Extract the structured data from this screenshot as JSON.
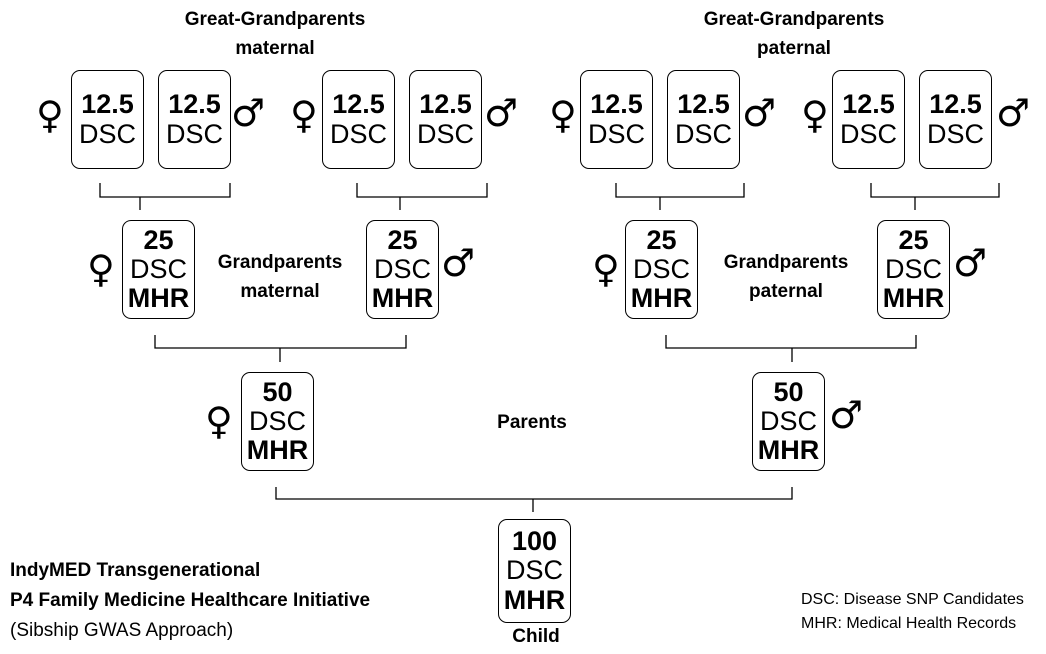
{
  "headers": {
    "maternal": {
      "line1": "Great-Grandparents",
      "line2": "maternal"
    },
    "paternal": {
      "line1": "Great-Grandparents",
      "line2": "paternal"
    }
  },
  "great_grandparent": {
    "value": "12.5",
    "code": "DSC"
  },
  "grandparent": {
    "value": "25",
    "code": "DSC",
    "records": "MHR"
  },
  "grandparents_labels": {
    "maternal": {
      "line1": "Grandparents",
      "line2": "maternal"
    },
    "paternal": {
      "line1": "Grandparents",
      "line2": "paternal"
    }
  },
  "parent": {
    "value": "50",
    "code": "DSC",
    "records": "MHR"
  },
  "parents_label": "Parents",
  "child": {
    "value": "100",
    "code": "DSC",
    "records": "MHR",
    "label": "Child"
  },
  "symbols": {
    "female": "♀",
    "male": "♂"
  },
  "footer": {
    "line1": "IndyMED Transgenerational",
    "line2": "P4 Family Medicine Healthcare Initiative",
    "line3": "(Sibship GWAS Approach)"
  },
  "legend": {
    "dsc": "DSC: Disease SNP Candidates",
    "mhr": "MHR: Medical Health Records"
  }
}
